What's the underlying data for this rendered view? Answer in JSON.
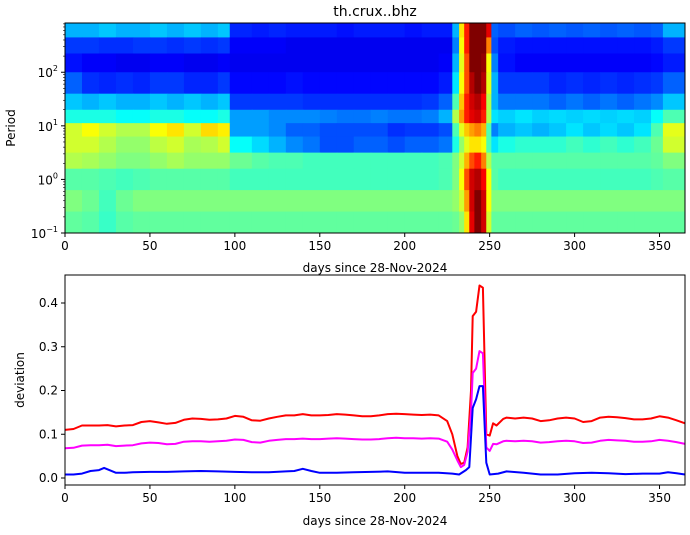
{
  "chart_data": [
    {
      "type": "heatmap",
      "title": "th.crux..bhz",
      "xlabel": "days since 28-Nov-2024",
      "ylabel": "Period",
      "xlim": [
        0,
        365
      ],
      "ylim": [
        0.1,
        830
      ],
      "yscale": "log",
      "colormap": "jet",
      "xticks": [
        0,
        50,
        100,
        150,
        200,
        250,
        300,
        350
      ],
      "yticks": [
        {
          "value": 0.1,
          "base": "10",
          "exp": "−1"
        },
        {
          "value": 1,
          "base": "10",
          "exp": "0"
        },
        {
          "value": 10,
          "base": "10",
          "exp": "1"
        },
        {
          "value": 100,
          "base": "10",
          "exp": "2"
        }
      ],
      "x_edges": [
        0,
        10,
        20,
        30,
        40,
        50,
        60,
        70,
        80,
        90,
        97,
        110,
        120,
        130,
        140,
        150,
        160,
        170,
        180,
        190,
        200,
        210,
        220,
        228,
        232,
        235,
        238,
        241,
        245,
        248,
        251,
        255,
        265,
        275,
        285,
        295,
        305,
        315,
        325,
        335,
        345,
        352,
        365
      ],
      "log10_period_edges": [
        2.92,
        2.65,
        2.35,
        2.0,
        1.6,
        1.3,
        1.05,
        0.8,
        0.5,
        0.2,
        -0.2,
        -0.6,
        -1.0
      ],
      "values": [
        [
          0.3,
          0.3,
          0.32,
          0.3,
          0.3,
          0.32,
          0.3,
          0.32,
          0.3,
          0.32,
          0.16,
          0.15,
          0.16,
          0.15,
          0.15,
          0.15,
          0.14,
          0.15,
          0.15,
          0.15,
          0.14,
          0.15,
          0.15,
          0.3,
          0.65,
          0.85,
          1.0,
          1.0,
          1.0,
          0.9,
          0.22,
          0.2,
          0.22,
          0.21,
          0.22,
          0.21,
          0.22,
          0.21,
          0.22,
          0.21,
          0.22,
          0.3
        ],
        [
          0.18,
          0.18,
          0.17,
          0.17,
          0.18,
          0.18,
          0.17,
          0.18,
          0.17,
          0.18,
          0.12,
          0.12,
          0.12,
          0.11,
          0.11,
          0.11,
          0.11,
          0.11,
          0.11,
          0.11,
          0.11,
          0.11,
          0.11,
          0.25,
          0.62,
          0.85,
          1.0,
          1.0,
          1.0,
          0.75,
          0.2,
          0.15,
          0.14,
          0.14,
          0.14,
          0.14,
          0.14,
          0.14,
          0.14,
          0.14,
          0.15,
          0.18
        ],
        [
          0.14,
          0.12,
          0.12,
          0.11,
          0.11,
          0.12,
          0.12,
          0.11,
          0.11,
          0.12,
          0.11,
          0.11,
          0.11,
          0.11,
          0.11,
          0.11,
          0.11,
          0.11,
          0.11,
          0.11,
          0.11,
          0.11,
          0.12,
          0.3,
          0.6,
          0.8,
          1.0,
          1.0,
          0.98,
          0.62,
          0.25,
          0.14,
          0.12,
          0.12,
          0.12,
          0.12,
          0.12,
          0.12,
          0.12,
          0.12,
          0.13,
          0.15
        ],
        [
          0.22,
          0.17,
          0.16,
          0.17,
          0.16,
          0.18,
          0.18,
          0.16,
          0.16,
          0.18,
          0.13,
          0.13,
          0.13,
          0.14,
          0.13,
          0.13,
          0.13,
          0.13,
          0.13,
          0.13,
          0.13,
          0.13,
          0.15,
          0.35,
          0.62,
          0.8,
          0.95,
          1.0,
          0.95,
          0.6,
          0.3,
          0.18,
          0.18,
          0.18,
          0.16,
          0.17,
          0.16,
          0.17,
          0.16,
          0.17,
          0.18,
          0.22
        ],
        [
          0.32,
          0.3,
          0.32,
          0.3,
          0.3,
          0.32,
          0.3,
          0.32,
          0.3,
          0.32,
          0.18,
          0.18,
          0.18,
          0.18,
          0.17,
          0.17,
          0.17,
          0.17,
          0.17,
          0.17,
          0.17,
          0.18,
          0.22,
          0.45,
          0.68,
          0.85,
          0.92,
          0.95,
          0.88,
          0.55,
          0.3,
          0.24,
          0.24,
          0.24,
          0.22,
          0.24,
          0.22,
          0.24,
          0.22,
          0.24,
          0.26,
          0.32
        ],
        [
          0.4,
          0.4,
          0.4,
          0.38,
          0.38,
          0.4,
          0.4,
          0.38,
          0.38,
          0.4,
          0.28,
          0.28,
          0.26,
          0.26,
          0.26,
          0.25,
          0.24,
          0.24,
          0.25,
          0.24,
          0.24,
          0.25,
          0.3,
          0.55,
          0.72,
          0.85,
          0.9,
          0.92,
          0.85,
          0.55,
          0.35,
          0.33,
          0.35,
          0.33,
          0.34,
          0.33,
          0.34,
          0.33,
          0.34,
          0.33,
          0.38,
          0.45
        ],
        [
          0.58,
          0.62,
          0.58,
          0.55,
          0.55,
          0.62,
          0.65,
          0.58,
          0.66,
          0.64,
          0.28,
          0.28,
          0.26,
          0.22,
          0.22,
          0.2,
          0.2,
          0.2,
          0.2,
          0.17,
          0.18,
          0.18,
          0.2,
          0.45,
          0.6,
          0.68,
          0.72,
          0.75,
          0.7,
          0.45,
          0.25,
          0.3,
          0.32,
          0.3,
          0.32,
          0.35,
          0.32,
          0.34,
          0.32,
          0.35,
          0.45,
          0.6
        ],
        [
          0.58,
          0.58,
          0.55,
          0.52,
          0.52,
          0.56,
          0.58,
          0.54,
          0.55,
          0.58,
          0.38,
          0.34,
          0.3,
          0.26,
          0.24,
          0.2,
          0.2,
          0.22,
          0.22,
          0.2,
          0.22,
          0.22,
          0.24,
          0.4,
          0.52,
          0.6,
          0.65,
          0.65,
          0.62,
          0.45,
          0.35,
          0.4,
          0.42,
          0.42,
          0.42,
          0.44,
          0.42,
          0.44,
          0.42,
          0.44,
          0.48,
          0.58
        ],
        [
          0.55,
          0.54,
          0.52,
          0.5,
          0.5,
          0.52,
          0.54,
          0.52,
          0.52,
          0.52,
          0.48,
          0.46,
          0.45,
          0.45,
          0.44,
          0.44,
          0.44,
          0.44,
          0.44,
          0.44,
          0.44,
          0.44,
          0.45,
          0.5,
          0.58,
          0.7,
          0.8,
          0.85,
          0.75,
          0.55,
          0.46,
          0.46,
          0.46,
          0.46,
          0.46,
          0.46,
          0.46,
          0.46,
          0.46,
          0.46,
          0.47,
          0.5
        ],
        [
          0.46,
          0.46,
          0.45,
          0.44,
          0.45,
          0.46,
          0.46,
          0.46,
          0.46,
          0.46,
          0.44,
          0.44,
          0.44,
          0.44,
          0.44,
          0.44,
          0.44,
          0.44,
          0.44,
          0.44,
          0.44,
          0.44,
          0.45,
          0.5,
          0.62,
          0.8,
          0.92,
          0.95,
          0.88,
          0.62,
          0.46,
          0.44,
          0.44,
          0.44,
          0.44,
          0.44,
          0.44,
          0.44,
          0.44,
          0.44,
          0.45,
          0.46
        ],
        [
          0.5,
          0.48,
          0.44,
          0.48,
          0.5,
          0.5,
          0.5,
          0.5,
          0.5,
          0.5,
          0.5,
          0.5,
          0.5,
          0.5,
          0.5,
          0.5,
          0.5,
          0.5,
          0.5,
          0.5,
          0.5,
          0.5,
          0.5,
          0.52,
          0.58,
          0.72,
          0.92,
          1.0,
          0.92,
          0.62,
          0.5,
          0.5,
          0.5,
          0.5,
          0.5,
          0.5,
          0.5,
          0.5,
          0.5,
          0.5,
          0.5,
          0.5
        ],
        [
          0.47,
          0.46,
          0.43,
          0.46,
          0.47,
          0.47,
          0.47,
          0.47,
          0.47,
          0.47,
          0.47,
          0.47,
          0.47,
          0.47,
          0.47,
          0.47,
          0.47,
          0.47,
          0.47,
          0.47,
          0.47,
          0.47,
          0.47,
          0.48,
          0.52,
          0.65,
          0.9,
          1.0,
          0.92,
          0.58,
          0.47,
          0.47,
          0.47,
          0.47,
          0.47,
          0.47,
          0.47,
          0.47,
          0.47,
          0.47,
          0.47,
          0.47
        ]
      ]
    },
    {
      "type": "line",
      "xlabel": "days since 28-Nov-2024",
      "ylabel": "deviation",
      "xlim": [
        0,
        365
      ],
      "ylim": [
        -0.016,
        0.464
      ],
      "xticks": [
        0,
        50,
        100,
        150,
        200,
        250,
        300,
        350
      ],
      "yticks": [
        "0.0",
        "0.1",
        "0.2",
        "0.3",
        "0.4"
      ],
      "grid": false,
      "series": [
        {
          "color": "#ff0000",
          "x": [
            0,
            5,
            10,
            15,
            20,
            25,
            30,
            35,
            40,
            45,
            50,
            55,
            60,
            65,
            70,
            75,
            80,
            85,
            90,
            95,
            100,
            105,
            110,
            115,
            120,
            125,
            130,
            135,
            140,
            145,
            150,
            155,
            160,
            165,
            170,
            175,
            180,
            185,
            190,
            195,
            200,
            205,
            210,
            215,
            220,
            225,
            228,
            231,
            233,
            235,
            237,
            239,
            240,
            242,
            244,
            246,
            248,
            250,
            252,
            254,
            258,
            260,
            265,
            270,
            275,
            280,
            285,
            290,
            295,
            300,
            305,
            310,
            315,
            320,
            325,
            330,
            335,
            340,
            345,
            350,
            355,
            360,
            365
          ],
          "y": [
            0.11,
            0.112,
            0.12,
            0.12,
            0.12,
            0.121,
            0.118,
            0.12,
            0.121,
            0.128,
            0.13,
            0.127,
            0.124,
            0.126,
            0.133,
            0.136,
            0.135,
            0.133,
            0.134,
            0.136,
            0.142,
            0.14,
            0.132,
            0.131,
            0.136,
            0.14,
            0.143,
            0.143,
            0.146,
            0.143,
            0.143,
            0.144,
            0.146,
            0.145,
            0.143,
            0.141,
            0.141,
            0.143,
            0.146,
            0.147,
            0.146,
            0.145,
            0.144,
            0.145,
            0.143,
            0.13,
            0.1,
            0.05,
            0.032,
            0.035,
            0.07,
            0.2,
            0.37,
            0.38,
            0.44,
            0.435,
            0.1,
            0.097,
            0.125,
            0.12,
            0.135,
            0.138,
            0.136,
            0.138,
            0.136,
            0.13,
            0.132,
            0.136,
            0.138,
            0.136,
            0.128,
            0.13,
            0.138,
            0.14,
            0.139,
            0.137,
            0.134,
            0.134,
            0.136,
            0.141,
            0.138,
            0.132,
            0.125
          ]
        },
        {
          "color": "#ff00ff",
          "x": [
            0,
            5,
            10,
            15,
            20,
            25,
            30,
            35,
            40,
            45,
            50,
            55,
            60,
            65,
            70,
            75,
            80,
            85,
            90,
            95,
            100,
            105,
            110,
            115,
            120,
            125,
            130,
            135,
            140,
            145,
            150,
            155,
            160,
            165,
            170,
            175,
            180,
            185,
            190,
            195,
            200,
            205,
            210,
            215,
            220,
            225,
            228,
            231,
            233,
            235,
            237,
            239,
            240,
            242,
            244,
            246,
            248,
            250,
            252,
            254,
            258,
            260,
            265,
            270,
            275,
            280,
            285,
            290,
            295,
            300,
            305,
            310,
            315,
            320,
            325,
            330,
            335,
            340,
            345,
            350,
            355,
            360,
            365
          ],
          "y": [
            0.068,
            0.069,
            0.074,
            0.075,
            0.075,
            0.076,
            0.073,
            0.074,
            0.075,
            0.079,
            0.081,
            0.08,
            0.077,
            0.078,
            0.083,
            0.084,
            0.084,
            0.083,
            0.084,
            0.085,
            0.088,
            0.087,
            0.082,
            0.081,
            0.085,
            0.087,
            0.089,
            0.089,
            0.09,
            0.089,
            0.089,
            0.09,
            0.091,
            0.09,
            0.089,
            0.088,
            0.088,
            0.089,
            0.091,
            0.092,
            0.091,
            0.091,
            0.09,
            0.091,
            0.09,
            0.083,
            0.065,
            0.04,
            0.025,
            0.03,
            0.06,
            0.15,
            0.24,
            0.25,
            0.29,
            0.285,
            0.07,
            0.062,
            0.078,
            0.077,
            0.084,
            0.085,
            0.084,
            0.085,
            0.084,
            0.081,
            0.082,
            0.084,
            0.085,
            0.084,
            0.08,
            0.081,
            0.085,
            0.087,
            0.086,
            0.085,
            0.083,
            0.083,
            0.084,
            0.087,
            0.085,
            0.082,
            0.078
          ]
        },
        {
          "color": "#0000ff",
          "x": [
            0,
            5,
            10,
            15,
            20,
            23,
            25,
            30,
            35,
            40,
            50,
            60,
            70,
            80,
            90,
            100,
            110,
            120,
            130,
            135,
            140,
            145,
            150,
            160,
            170,
            180,
            190,
            200,
            210,
            220,
            228,
            232,
            236,
            238,
            240,
            242,
            244,
            246,
            248,
            250,
            255,
            260,
            270,
            280,
            290,
            300,
            310,
            320,
            330,
            340,
            350,
            355,
            360,
            365
          ],
          "y": [
            0.008,
            0.008,
            0.01,
            0.016,
            0.018,
            0.023,
            0.02,
            0.012,
            0.012,
            0.013,
            0.014,
            0.014,
            0.015,
            0.016,
            0.015,
            0.014,
            0.013,
            0.013,
            0.015,
            0.016,
            0.021,
            0.016,
            0.012,
            0.012,
            0.013,
            0.014,
            0.015,
            0.012,
            0.012,
            0.012,
            0.01,
            0.008,
            0.018,
            0.025,
            0.16,
            0.18,
            0.21,
            0.21,
            0.035,
            0.008,
            0.01,
            0.015,
            0.012,
            0.008,
            0.008,
            0.011,
            0.012,
            0.011,
            0.009,
            0.01,
            0.01,
            0.013,
            0.011,
            0.008
          ]
        }
      ]
    }
  ]
}
